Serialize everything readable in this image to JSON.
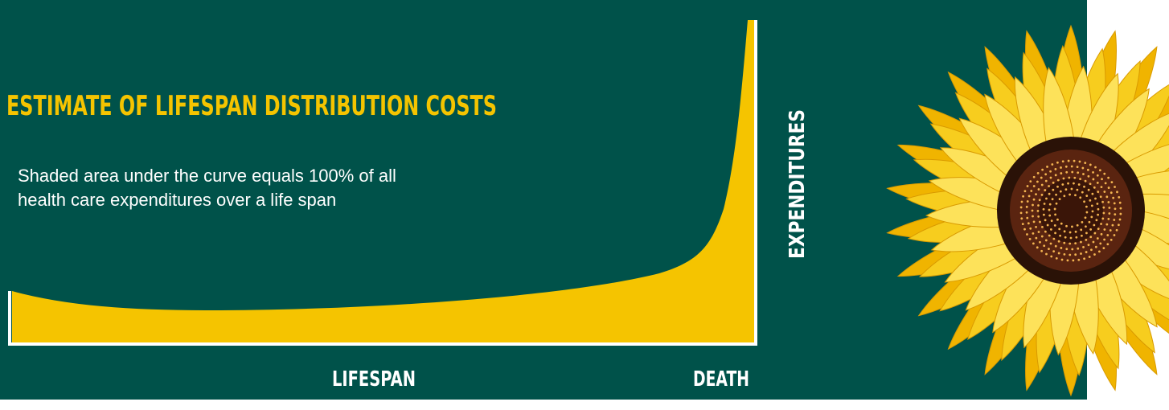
{
  "header": {
    "title": "ESTIMATE OF LIFESPAN DISTRIBUTION COSTS"
  },
  "description": {
    "lines": [
      "Shaded area under the curve equals 100% of all",
      "health care expenditures over a life span"
    ]
  },
  "axes": {
    "x_label": "LIFESPAN",
    "x_end_label": "DEATH",
    "y_label": "EXPENDITURES"
  }
}
